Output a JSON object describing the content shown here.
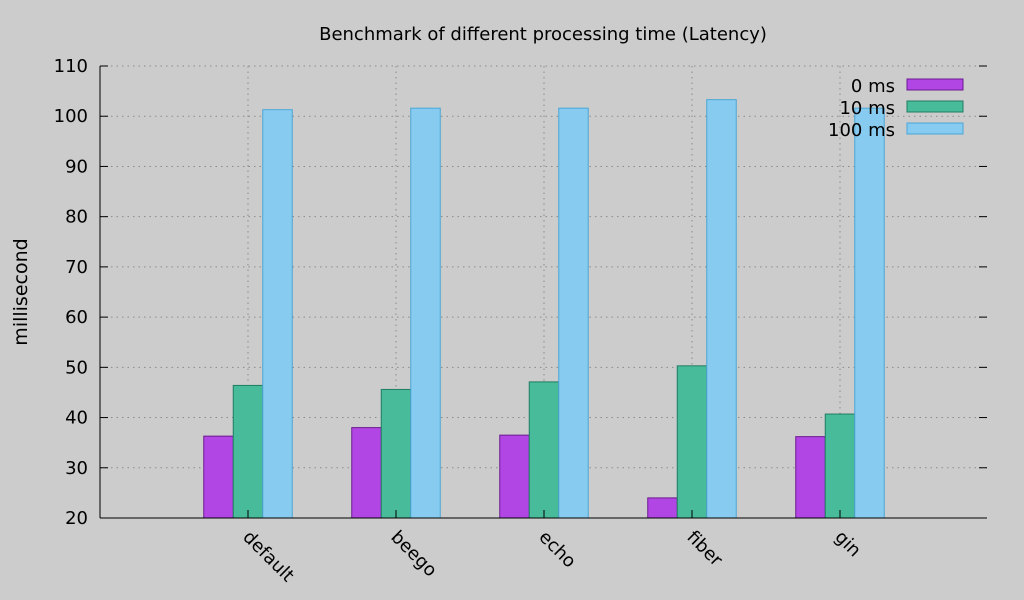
{
  "chart_data": {
    "type": "bar",
    "title": "Benchmark of different processing time (Latency)",
    "xlabel": "",
    "ylabel": "millisecond",
    "ylim": [
      20,
      110
    ],
    "yticks": [
      20,
      30,
      40,
      50,
      60,
      70,
      80,
      90,
      100,
      110
    ],
    "grid": true,
    "legend_position": "top-right",
    "categories": [
      "default",
      "beego",
      "echo",
      "fiber",
      "gin"
    ],
    "series": [
      {
        "name": "0 ms",
        "color": "#b246e4",
        "edge": "#6a1a90",
        "values": [
          36.3,
          38.0,
          36.5,
          24.0,
          36.2
        ]
      },
      {
        "name": "10 ms",
        "color": "#48bb9a",
        "edge": "#1f7d60",
        "values": [
          46.4,
          45.6,
          47.1,
          50.3,
          40.7
        ]
      },
      {
        "name": "100 ms",
        "color": "#88cbf0",
        "edge": "#4aa6d6",
        "values": [
          101.3,
          101.6,
          101.6,
          103.3,
          101.6
        ]
      }
    ]
  }
}
